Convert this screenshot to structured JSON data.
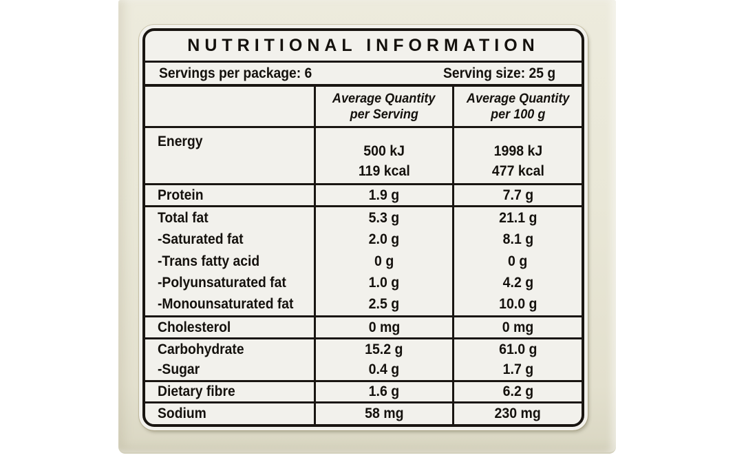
{
  "colors": {
    "page-bg": "#ffffff",
    "package-bg": "#e9e7d7",
    "package-edge": "#d3d0bc",
    "label-bg": "#f2f1ec",
    "line": "#191511",
    "text": "#14110d"
  },
  "label": {
    "title": "NUTRITIONAL INFORMATION",
    "servings_per_package": "Servings per package: 6",
    "serving_size": "Serving size: 25 g",
    "columns": {
      "serving": {
        "line1": "Average Quantity",
        "line2": "per Serving"
      },
      "per100": {
        "line1": "Average Quantity",
        "line2": "per 100 g"
      }
    },
    "energy": {
      "label": "Energy",
      "serving_kj": "500 kJ",
      "serving_kcal": "119 kcal",
      "per100_kj": "1998 kJ",
      "per100_kcal": "477 kcal"
    },
    "rows": {
      "protein": {
        "label": "Protein",
        "serving": "1.9 g",
        "per100": "7.7 g"
      },
      "total_fat": {
        "label": "Total fat",
        "serving": "5.3 g",
        "per100": "21.1 g"
      },
      "saturated_fat": {
        "label": "-Saturated fat",
        "serving": "2.0 g",
        "per100": "8.1 g"
      },
      "trans_fatty_acid": {
        "label": "-Trans fatty acid",
        "serving": "0 g",
        "per100": "0 g"
      },
      "polyunsaturated_fat": {
        "label": "-Polyunsaturated fat",
        "serving": "1.0 g",
        "per100": "4.2 g"
      },
      "monounsaturated_fat": {
        "label": "-Monounsaturated fat",
        "serving": "2.5 g",
        "per100": "10.0 g"
      },
      "cholesterol": {
        "label": "Cholesterol",
        "serving": "0 mg",
        "per100": "0 mg"
      },
      "carbohydrate": {
        "label": "Carbohydrate",
        "serving": "15.2 g",
        "per100": "61.0 g"
      },
      "sugar": {
        "label": "-Sugar",
        "serving": "0.4 g",
        "per100": "1.7 g"
      },
      "dietary_fibre": {
        "label": "Dietary fibre",
        "serving": "1.6 g",
        "per100": "6.2 g"
      },
      "sodium": {
        "label": "Sodium",
        "serving": "58 mg",
        "per100": "230 mg"
      }
    }
  }
}
